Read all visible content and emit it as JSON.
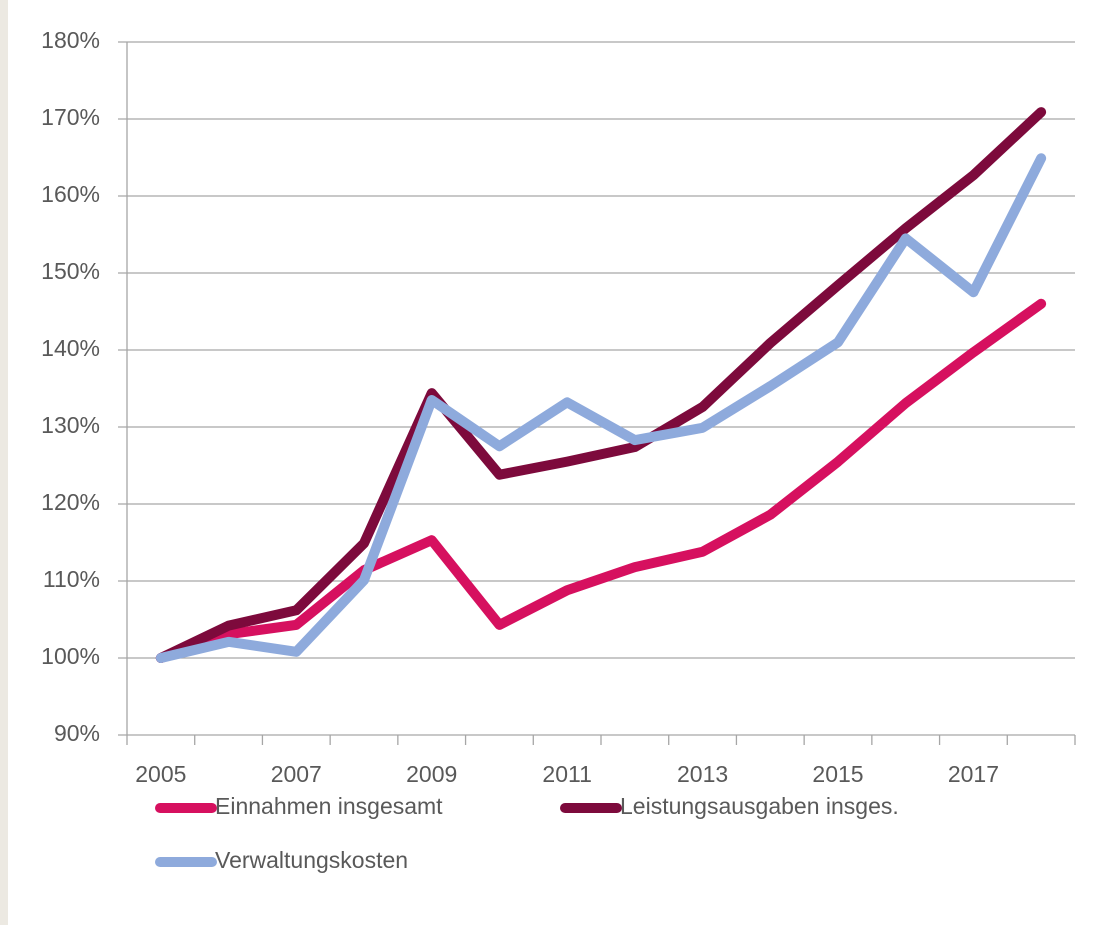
{
  "chart_data": {
    "type": "line",
    "categories": [
      "2005",
      null,
      "2007",
      null,
      "2009",
      null,
      "2011",
      null,
      "2013",
      null,
      "2015",
      null,
      "2017",
      null
    ],
    "series": [
      {
        "name": "Einnahmen insgesamt",
        "color": "#d6105f",
        "values": [
          100,
          103.1,
          104.3,
          111.4,
          115.3,
          104.3,
          108.8,
          111.8,
          113.8,
          118.6,
          125.5,
          133.1,
          139.7,
          146
        ]
      },
      {
        "name": "Leistungsausgaben insges.",
        "color": "#7d0a3c",
        "values": [
          100,
          104.2,
          106.2,
          114.9,
          134.4,
          123.8,
          125.5,
          127.4,
          132.6,
          140.9,
          148.4,
          155.8,
          162.7,
          170.9
        ]
      },
      {
        "name": "Verwaltungskosten",
        "color": "#8eaadc",
        "values": [
          100,
          102.1,
          100.8,
          110.1,
          133.5,
          127.5,
          133.2,
          128.3,
          129.9,
          135.3,
          141.0,
          154.5,
          147.5,
          164.9
        ]
      }
    ],
    "ylim": [
      90,
      180
    ],
    "yticks": [
      {
        "value": 90,
        "label": "90%"
      },
      {
        "value": 100,
        "label": "100%"
      },
      {
        "value": 110,
        "label": "110%"
      },
      {
        "value": 120,
        "label": "120%"
      },
      {
        "value": 130,
        "label": "130%"
      },
      {
        "value": 140,
        "label": "140%"
      },
      {
        "value": 150,
        "label": "150%"
      },
      {
        "value": 160,
        "label": "160%"
      },
      {
        "value": 170,
        "label": "170%"
      },
      {
        "value": 180,
        "label": "180%"
      }
    ],
    "grid": true
  }
}
